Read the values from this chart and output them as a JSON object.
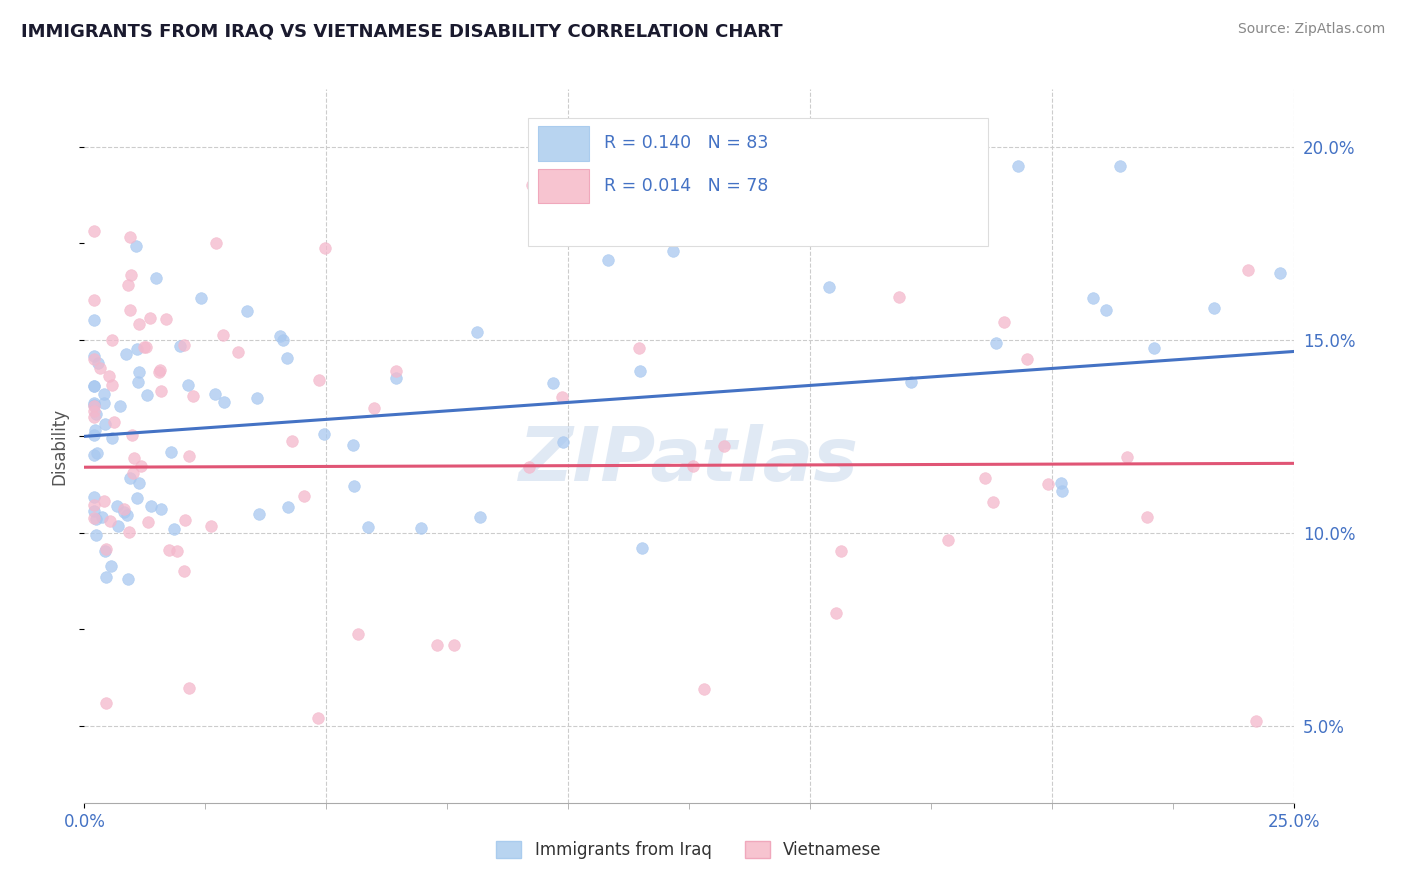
{
  "title": "IMMIGRANTS FROM IRAQ VS VIETNAMESE DISABILITY CORRELATION CHART",
  "source": "Source: ZipAtlas.com",
  "ylabel": "Disability",
  "xlim": [
    0.0,
    0.25
  ],
  "ylim": [
    0.03,
    0.215
  ],
  "ytick_labels_right": [
    "5.0%",
    "10.0%",
    "15.0%",
    "20.0%"
  ],
  "ytick_positions_right": [
    0.05,
    0.1,
    0.15,
    0.2
  ],
  "series1_name": "Immigrants from Iraq",
  "series1_color": "#a8c8f0",
  "series1_line_color": "#4472c4",
  "series2_name": "Vietnamese",
  "series2_color": "#f4b8cc",
  "series2_line_color": "#e05575",
  "series1_R": 0.14,
  "series1_N": 83,
  "series2_R": 0.014,
  "series2_N": 78,
  "legend_text_color": "#4472c4",
  "background_color": "#ffffff",
  "grid_color": "#cccccc",
  "title_color": "#1a1a2e",
  "watermark": "ZIPatlas",
  "trend1_x0": 0.0,
  "trend1_y0": 0.125,
  "trend1_x1": 0.25,
  "trend1_y1": 0.147,
  "trend2_x0": 0.0,
  "trend2_y0": 0.117,
  "trend2_x1": 0.25,
  "trend2_y1": 0.118
}
